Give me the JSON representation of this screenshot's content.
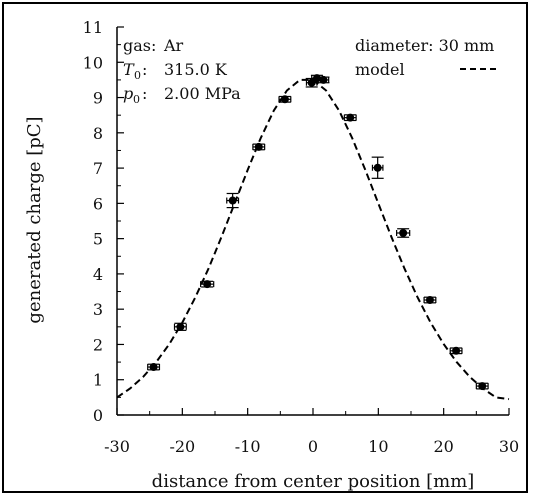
{
  "chart_data": {
    "type": "scatter",
    "xlabel": "distance from center position   [mm]",
    "ylabel": "generated charge   [pC]",
    "xlim": [
      -30,
      30
    ],
    "ylim": [
      0,
      11
    ],
    "x_ticks": [
      -30,
      -20,
      -10,
      0,
      10,
      20,
      30
    ],
    "y_ticks": [
      0,
      1,
      2,
      3,
      4,
      5,
      6,
      7,
      8,
      9,
      10,
      11
    ],
    "grid": false,
    "info_box": {
      "gas_label": "gas:",
      "gas_value": "Ar",
      "t0_symbol": "T",
      "t0_sub": "0",
      "t0_colon": ":",
      "t0_value": "315.0 K",
      "p0_symbol": "p",
      "p0_sub": "0",
      "p0_colon": ":",
      "p0_value": "2.00 MPa"
    },
    "legend": {
      "position": "top-right",
      "diameter_label": "diameter: 30 mm",
      "model_label": "model"
    },
    "series": [
      {
        "marker": "circle-with-x-error",
        "points": [
          {
            "x": -24.4,
            "y": 1.36,
            "xerr": 0.9,
            "yerr": 0.08
          },
          {
            "x": -20.3,
            "y": 2.5,
            "xerr": 0.9,
            "yerr": 0.1
          },
          {
            "x": -16.2,
            "y": 3.71,
            "xerr": 1.0,
            "yerr": 0.08
          },
          {
            "x": -12.3,
            "y": 6.08,
            "xerr": 0.9,
            "yerr": 0.2
          },
          {
            "x": -8.3,
            "y": 7.6,
            "xerr": 0.9,
            "yerr": 0.08
          },
          {
            "x": -4.3,
            "y": 8.95,
            "xerr": 0.9,
            "yerr": 0.08
          },
          {
            "x": -0.2,
            "y": 9.42,
            "xerr": 0.8,
            "yerr": 0.12
          },
          {
            "x": 0.6,
            "y": 9.55,
            "xerr": 0.8,
            "yerr": 0.08
          },
          {
            "x": 1.6,
            "y": 9.5,
            "xerr": 0.8,
            "yerr": 0.08
          },
          {
            "x": 5.7,
            "y": 8.43,
            "xerr": 0.9,
            "yerr": 0.08
          },
          {
            "x": 9.9,
            "y": 7.01,
            "xerr": 0.8,
            "yerr": 0.3
          },
          {
            "x": 13.8,
            "y": 5.16,
            "xerr": 1.0,
            "yerr": 0.12
          },
          {
            "x": 17.9,
            "y": 3.26,
            "xerr": 0.9,
            "yerr": 0.08
          },
          {
            "x": 21.9,
            "y": 1.82,
            "xerr": 0.9,
            "yerr": 0.08
          },
          {
            "x": 25.9,
            "y": 0.82,
            "xerr": 0.9,
            "yerr": 0.08
          }
        ]
      },
      {
        "name": "model",
        "line_style": "dashed",
        "x": [
          -30,
          -28,
          -26,
          -24,
          -22,
          -20,
          -18,
          -16,
          -14,
          -12,
          -10,
          -8,
          -6,
          -4,
          -2,
          0,
          2,
          4,
          6,
          8,
          10,
          12,
          14,
          16,
          18,
          20,
          22,
          24,
          26,
          28,
          30
        ],
        "y": [
          0.5,
          0.75,
          1.08,
          1.5,
          2.01,
          2.62,
          3.34,
          4.15,
          5.05,
          6.0,
          6.95,
          7.85,
          8.63,
          9.2,
          9.5,
          9.5,
          9.2,
          8.63,
          7.85,
          6.95,
          6.0,
          5.05,
          4.15,
          3.34,
          2.62,
          2.01,
          1.5,
          1.08,
          0.75,
          0.5,
          0.45
        ]
      }
    ]
  }
}
